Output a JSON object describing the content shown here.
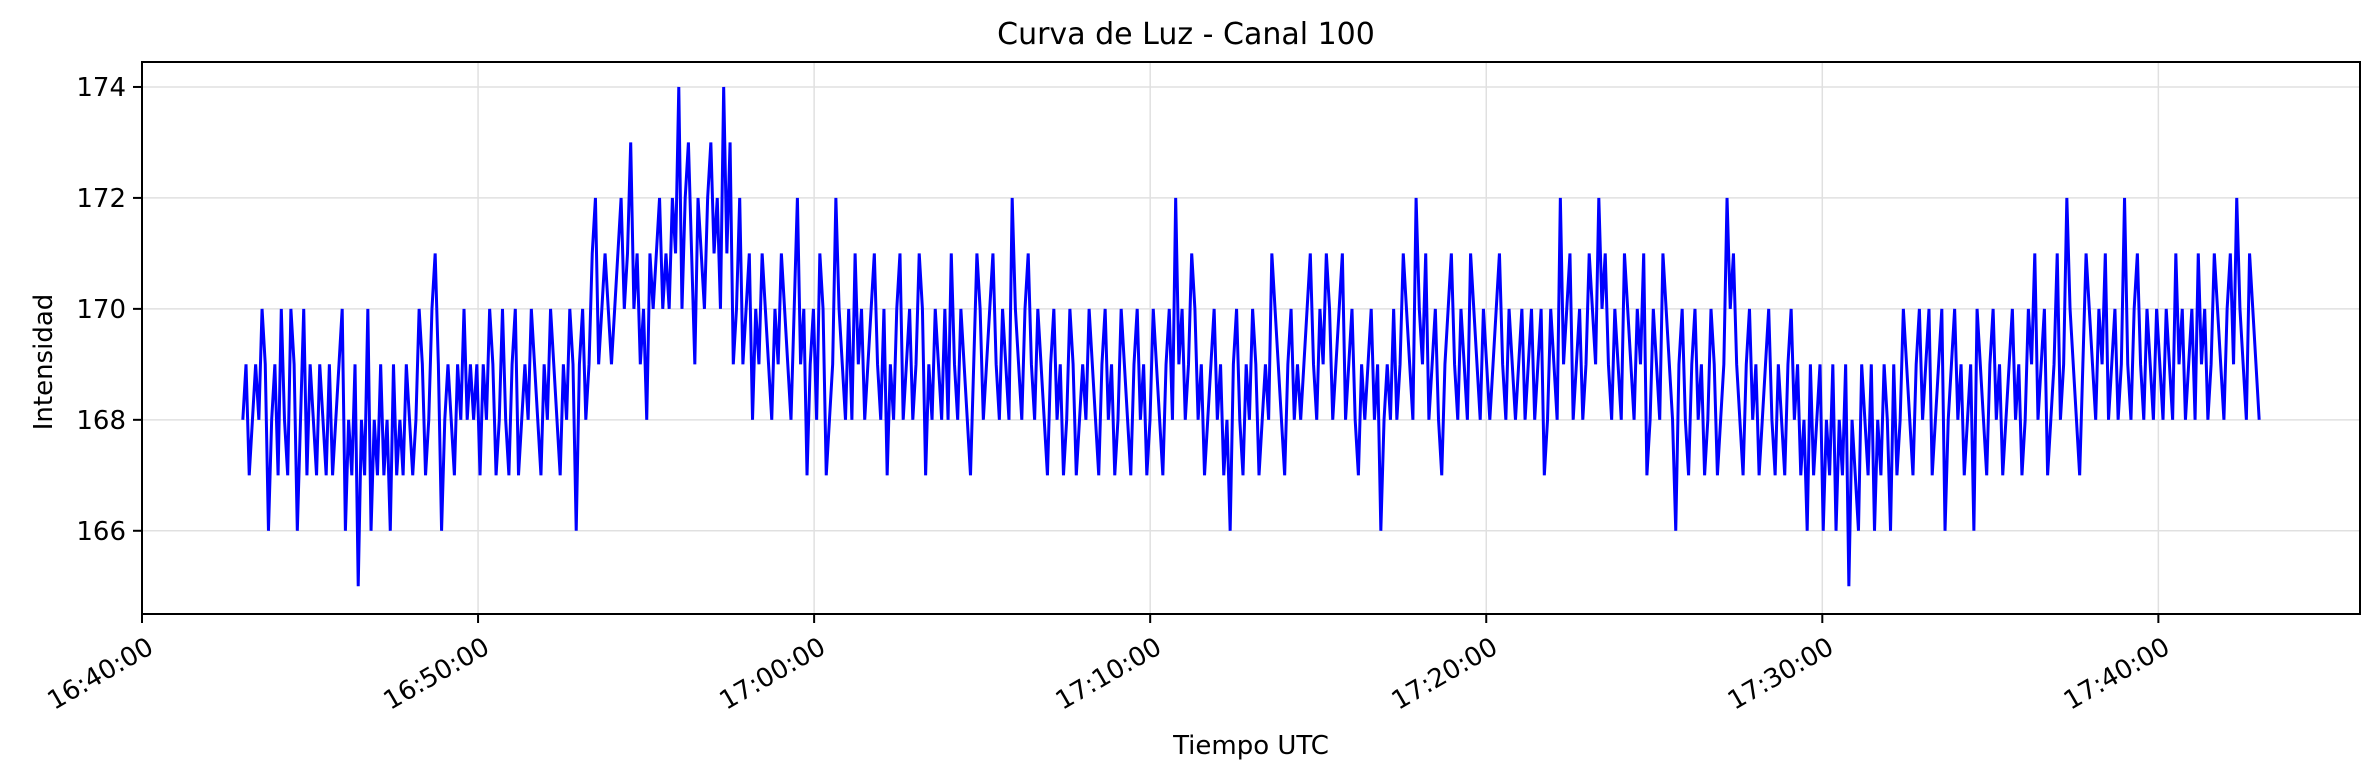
{
  "chart_data": {
    "type": "line",
    "title": "Curva de Luz - Canal 100",
    "xlabel": "Tiempo UTC",
    "ylabel": "Intensidad",
    "grid": true,
    "line_color": "#0000ff",
    "grid_color": "#e0e0e0",
    "x_axis": {
      "type": "time",
      "range": [
        "16:40:00",
        "17:46:00"
      ],
      "ticks": [
        "16:40:00",
        "16:50:00",
        "17:00:00",
        "17:10:00",
        "17:20:00",
        "17:30:00",
        "17:40:00"
      ]
    },
    "y_axis": {
      "range": [
        164.5,
        174.45
      ],
      "ticks": [
        "166",
        "168",
        "170",
        "172",
        "174"
      ]
    },
    "series": [
      {
        "x_start": "16:43:00",
        "x_end": "17:43:00",
        "sampling": "evenly spaced samples from x_start to x_end",
        "values": [
          168,
          169,
          167,
          168,
          169,
          168,
          170,
          169,
          166,
          168,
          169,
          167,
          170,
          168,
          167,
          170,
          169,
          166,
          168,
          170,
          167,
          169,
          168,
          167,
          169,
          168,
          167,
          169,
          167,
          168,
          169,
          170,
          166,
          168,
          167,
          169,
          165,
          168,
          167,
          170,
          166,
          168,
          167,
          169,
          167,
          168,
          166,
          169,
          167,
          168,
          167,
          169,
          168,
          167,
          168,
          170,
          169,
          167,
          168,
          170,
          171,
          169,
          166,
          168,
          169,
          168,
          167,
          169,
          168,
          170,
          168,
          169,
          168,
          169,
          167,
          169,
          168,
          170,
          169,
          167,
          168,
          170,
          168,
          167,
          169,
          170,
          167,
          168,
          169,
          168,
          170,
          169,
          168,
          167,
          169,
          168,
          170,
          169,
          168,
          167,
          169,
          168,
          170,
          169,
          166,
          169,
          170,
          168,
          169,
          171,
          172,
          169,
          170,
          171,
          170,
          169,
          170,
          171,
          172,
          170,
          171,
          173,
          170,
          171,
          169,
          170,
          168,
          171,
          170,
          171,
          172,
          170,
          171,
          170,
          172,
          171,
          174,
          170,
          172,
          173,
          171,
          169,
          172,
          171,
          170,
          172,
          173,
          171,
          172,
          170,
          174,
          171,
          173,
          169,
          170,
          172,
          169,
          170,
          171,
          168,
          170,
          169,
          171,
          170,
          169,
          168,
          170,
          169,
          171,
          170,
          169,
          168,
          170,
          172,
          169,
          170,
          167,
          169,
          170,
          168,
          171,
          170,
          167,
          168,
          169,
          172,
          170,
          169,
          168,
          170,
          168,
          171,
          169,
          170,
          168,
          169,
          170,
          171,
          169,
          168,
          170,
          167,
          169,
          168,
          170,
          171,
          168,
          169,
          170,
          168,
          169,
          171,
          170,
          167,
          169,
          168,
          170,
          169,
          168,
          170,
          168,
          171,
          169,
          168,
          170,
          169,
          168,
          167,
          169,
          171,
          170,
          168,
          169,
          170,
          171,
          169,
          168,
          170,
          169,
          168,
          172,
          170,
          169,
          168,
          170,
          171,
          169,
          168,
          170,
          169,
          168,
          167,
          169,
          170,
          168,
          169,
          167,
          168,
          170,
          169,
          167,
          168,
          169,
          168,
          170,
          169,
          168,
          167,
          169,
          170,
          168,
          169,
          167,
          168,
          170,
          169,
          168,
          167,
          169,
          170,
          168,
          169,
          167,
          168,
          170,
          169,
          168,
          167,
          169,
          170,
          168,
          172,
          169,
          170,
          168,
          169,
          171,
          170,
          168,
          169,
          167,
          168,
          169,
          170,
          168,
          169,
          167,
          168,
          166,
          169,
          170,
          168,
          167,
          169,
          168,
          170,
          169,
          167,
          168,
          169,
          168,
          171,
          170,
          169,
          168,
          167,
          169,
          170,
          168,
          169,
          168,
          169,
          170,
          171,
          169,
          168,
          170,
          169,
          171,
          170,
          168,
          169,
          170,
          171,
          168,
          169,
          170,
          168,
          167,
          169,
          168,
          169,
          170,
          168,
          169,
          166,
          168,
          169,
          168,
          170,
          168,
          169,
          171,
          170,
          169,
          168,
          172,
          170,
          169,
          171,
          168,
          169,
          170,
          168,
          167,
          169,
          170,
          171,
          169,
          168,
          170,
          169,
          168,
          171,
          170,
          169,
          168,
          170,
          169,
          168,
          169,
          170,
          171,
          169,
          168,
          170,
          169,
          168,
          169,
          170,
          168,
          169,
          170,
          168,
          169,
          170,
          167,
          168,
          170,
          169,
          168,
          172,
          169,
          170,
          171,
          168,
          169,
          170,
          168,
          169,
          171,
          170,
          169,
          172,
          170,
          171,
          169,
          168,
          170,
          169,
          168,
          171,
          170,
          169,
          168,
          170,
          169,
          171,
          167,
          168,
          170,
          169,
          168,
          171,
          170,
          169,
          168,
          166,
          169,
          170,
          168,
          167,
          169,
          170,
          168,
          169,
          167,
          168,
          170,
          169,
          167,
          168,
          169,
          172,
          170,
          171,
          169,
          168,
          167,
          169,
          170,
          168,
          169,
          167,
          168,
          169,
          170,
          168,
          167,
          169,
          168,
          167,
          169,
          170,
          168,
          169,
          167,
          168,
          166,
          169,
          167,
          168,
          169,
          166,
          168,
          167,
          169,
          166,
          168,
          167,
          169,
          165,
          168,
          167,
          166,
          169,
          168,
          167,
          169,
          166,
          168,
          167,
          169,
          168,
          166,
          169,
          167,
          168,
          170,
          169,
          168,
          167,
          169,
          170,
          168,
          169,
          170,
          167,
          168,
          169,
          170,
          166,
          168,
          169,
          170,
          168,
          169,
          167,
          168,
          169,
          166,
          170,
          169,
          168,
          167,
          169,
          170,
          168,
          169,
          167,
          168,
          169,
          170,
          168,
          169,
          167,
          168,
          170,
          169,
          171,
          168,
          169,
          170,
          167,
          168,
          169,
          171,
          168,
          169,
          172,
          170,
          169,
          168,
          167,
          169,
          171,
          170,
          169,
          168,
          170,
          169,
          171,
          168,
          169,
          170,
          168,
          169,
          172,
          169,
          168,
          170,
          171,
          169,
          168,
          170,
          169,
          168,
          170,
          169,
          168,
          170,
          169,
          168,
          171,
          169,
          170,
          168,
          169,
          170,
          168,
          171,
          169,
          170,
          168,
          169,
          171,
          170,
          169,
          168,
          170,
          171,
          169,
          172,
          170,
          169,
          168,
          171,
          170,
          169,
          168
        ]
      }
    ]
  }
}
